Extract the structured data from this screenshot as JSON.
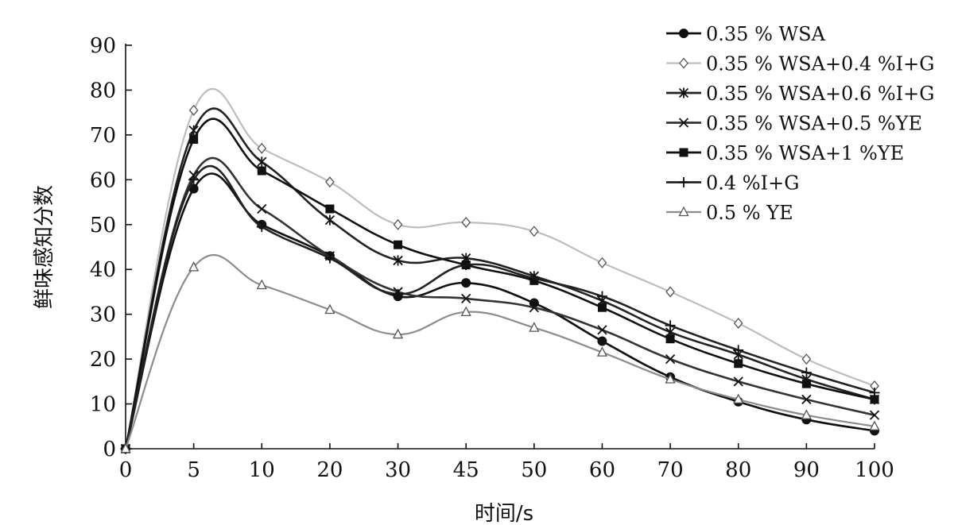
{
  "chart_data": {
    "type": "line",
    "xlabel": "时间/s",
    "ylabel": "鲜味感知分数",
    "x_categories": [
      "0",
      "5",
      "10",
      "20",
      "30",
      "45",
      "50",
      "60",
      "70",
      "80",
      "90",
      "100"
    ],
    "y_ticks": [
      "0",
      "10",
      "20",
      "30",
      "40",
      "50",
      "60",
      "70",
      "80",
      "90"
    ],
    "ylim": [
      0,
      90
    ],
    "grid": false,
    "legend_position": "top-right",
    "series": [
      {
        "name": "0.35 % WSA",
        "marker": "filled-circle",
        "color": "#111111",
        "values": [
          0,
          58,
          50,
          43,
          34,
          37,
          32.5,
          24,
          16,
          10.5,
          6.5,
          4
        ]
      },
      {
        "name": "0.35 % WSA+0.4 %I+G",
        "marker": "open-diamond",
        "color": "#bdbdbd",
        "values": [
          0,
          75.5,
          67,
          59.5,
          50,
          50.5,
          48.5,
          41.5,
          35,
          28,
          20,
          14
        ]
      },
      {
        "name": "0.35 % WSA+0.6 %I+G",
        "marker": "asterisk",
        "color": "#222222",
        "values": [
          0,
          71,
          64,
          51,
          42,
          42.5,
          38.5,
          33,
          26,
          21,
          15.5,
          11
        ]
      },
      {
        "name": "0.35 % WSA+0.5 %YE",
        "marker": "x",
        "color": "#333333",
        "values": [
          0,
          61,
          53.5,
          43,
          35,
          33.5,
          31.5,
          26.5,
          20,
          15,
          11,
          7.5
        ]
      },
      {
        "name": "0.35 % WSA+1 %YE",
        "marker": "filled-square",
        "color": "#111111",
        "values": [
          0,
          69,
          62,
          53.5,
          45.5,
          41,
          37.5,
          31.5,
          24.5,
          19,
          14.5,
          11
        ]
      },
      {
        "name": "0.4 %I+G",
        "marker": "plus",
        "color": "#222222",
        "values": [
          0,
          60,
          49.5,
          42.5,
          34.5,
          41,
          38,
          34,
          27.5,
          22,
          17,
          12.5
        ]
      },
      {
        "name": "0.5 % YE",
        "marker": "open-triangle",
        "color": "#8c8c8c",
        "values": [
          0,
          40.5,
          36.5,
          31,
          25.5,
          30.5,
          27,
          21.5,
          15.5,
          11,
          7.5,
          5
        ]
      }
    ]
  }
}
